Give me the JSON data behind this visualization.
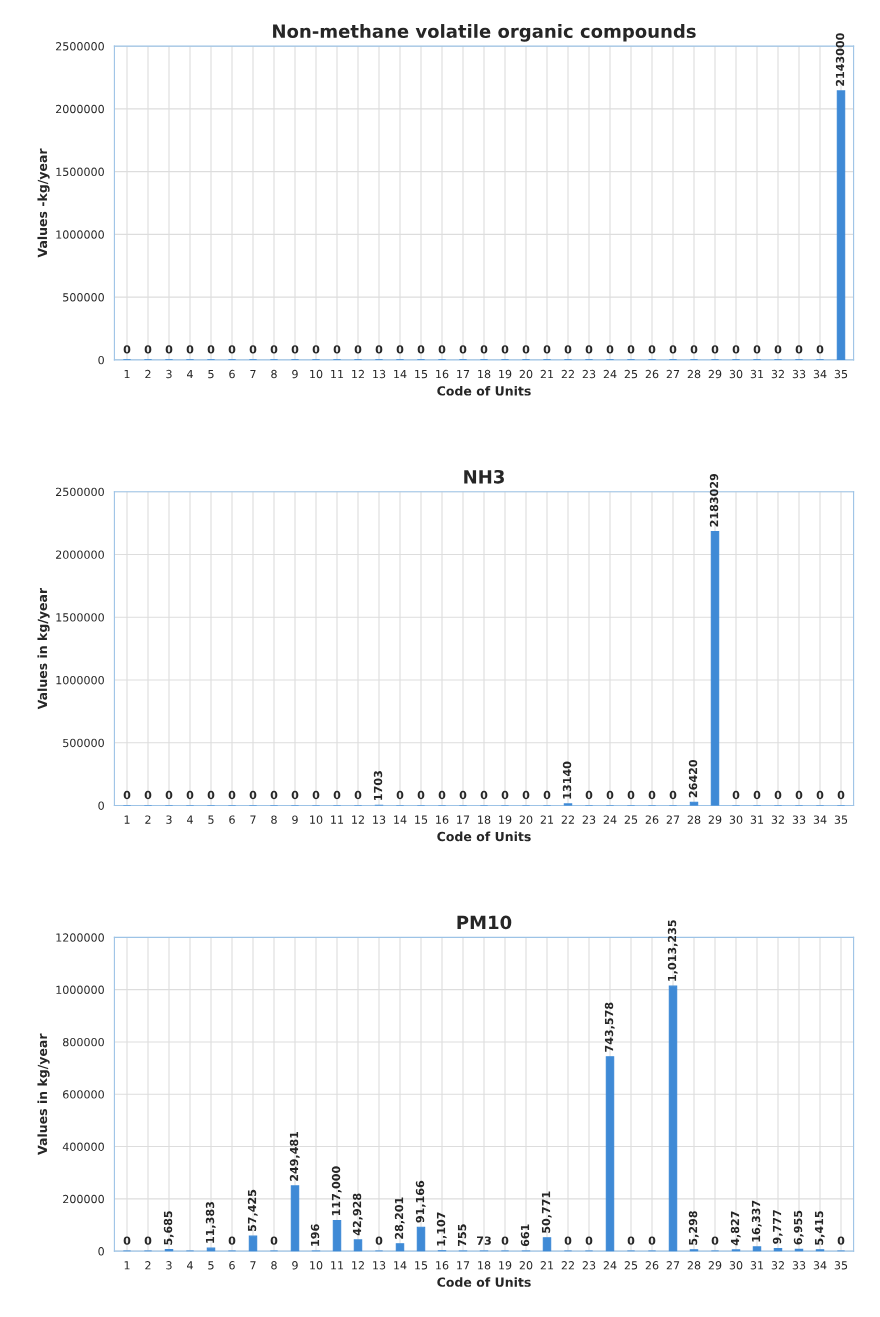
{
  "chart_data": [
    {
      "type": "bar",
      "title": "Non-methane volatile organic compounds",
      "xlabel": "Code of Units",
      "ylabel": "Values -kg/year",
      "categories": [
        "1",
        "2",
        "3",
        "4",
        "5",
        "6",
        "7",
        "8",
        "9",
        "10",
        "11",
        "12",
        "13",
        "14",
        "15",
        "16",
        "17",
        "18",
        "19",
        "20",
        "21",
        "22",
        "23",
        "24",
        "25",
        "26",
        "27",
        "28",
        "29",
        "30",
        "31",
        "32",
        "33",
        "34",
        "35"
      ],
      "values": [
        0,
        0,
        0,
        0,
        0,
        0,
        0,
        0,
        0,
        0,
        0,
        0,
        0,
        0,
        0,
        0,
        0,
        0,
        0,
        0,
        0,
        0,
        0,
        0,
        0,
        0,
        0,
        0,
        0,
        0,
        0,
        0,
        0,
        0,
        2143000
      ],
      "color": "#3f8ad6",
      "ylim": [
        0,
        2500000
      ],
      "yticks": [
        0,
        500000,
        1000000,
        1500000,
        2000000,
        2500000
      ],
      "grid": true,
      "data_labels": true
    },
    {
      "type": "bar",
      "title": "NH3",
      "xlabel": "Code of Units",
      "ylabel": "Values in kg/year",
      "categories": [
        "1",
        "2",
        "3",
        "4",
        "5",
        "6",
        "7",
        "8",
        "9",
        "10",
        "11",
        "12",
        "13",
        "14",
        "15",
        "16",
        "17",
        "18",
        "19",
        "20",
        "21",
        "22",
        "23",
        "24",
        "25",
        "26",
        "27",
        "28",
        "29",
        "30",
        "31",
        "32",
        "33",
        "34",
        "35"
      ],
      "values": [
        0,
        0,
        0,
        0,
        0,
        0,
        0,
        0,
        0,
        0,
        0,
        0,
        1703,
        0,
        0,
        0,
        0,
        0,
        0,
        0,
        0,
        13140,
        0,
        0,
        0,
        0,
        0,
        26420,
        2183029,
        0,
        0,
        0,
        0,
        0,
        0
      ],
      "color": "#3f8ad6",
      "ylim": [
        0,
        2500000
      ],
      "yticks": [
        0,
        500000,
        1000000,
        1500000,
        2000000,
        2500000
      ],
      "grid": true,
      "data_labels": true
    },
    {
      "type": "bar",
      "title": "PM10",
      "xlabel": "Code of Units",
      "ylabel": "Values in kg/year",
      "categories": [
        "1",
        "2",
        "3",
        "4",
        "5",
        "6",
        "7",
        "8",
        "9",
        "10",
        "11",
        "12",
        "13",
        "14",
        "15",
        "16",
        "17",
        "18",
        "19",
        "20",
        "21",
        "22",
        "23",
        "24",
        "25",
        "26",
        "27",
        "28",
        "29",
        "30",
        "31",
        "32",
        "33",
        "34",
        "35"
      ],
      "values": [
        0,
        0,
        5685,
        0,
        11383,
        0,
        57425,
        0,
        249481,
        196,
        117000,
        42928,
        0,
        28201,
        91166,
        1107,
        755,
        73,
        0,
        661,
        50771,
        0,
        0,
        743578,
        0,
        0,
        1013235,
        5298,
        0,
        4827,
        16337,
        9777,
        6955,
        5415,
        0
      ],
      "value_labels": [
        "0",
        "0",
        "5,685",
        null,
        "11,383",
        "0",
        "57,425",
        "0",
        "249,481",
        "196",
        "117,000",
        "42,928",
        "0",
        "28,201",
        "91,166",
        "1,107",
        "755",
        "73",
        "0",
        "661",
        "50,771",
        "0",
        "0",
        "743,578",
        "0",
        "0",
        "1,013,235",
        "5,298",
        "0",
        "4,827",
        "16,337",
        "9,777",
        "6,955",
        "5,415",
        "0"
      ],
      "color": "#3f8ad6",
      "ylim": [
        0,
        1200000
      ],
      "yticks": [
        0,
        200000,
        400000,
        600000,
        800000,
        1000000,
        1200000
      ],
      "grid": true
    }
  ]
}
